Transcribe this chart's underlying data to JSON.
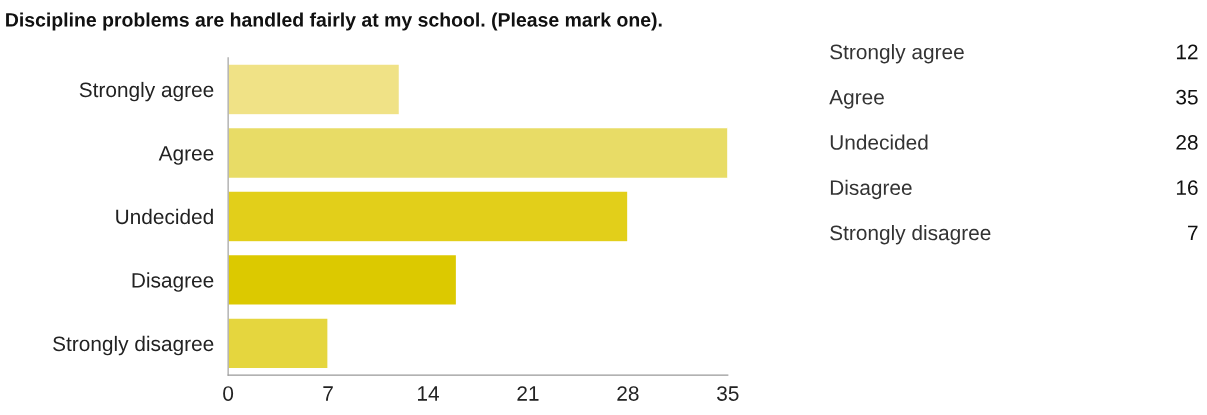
{
  "chart_data": [
    {
      "type": "bar",
      "orientation": "horizontal",
      "title": "Discipline problems are handled fairly at my school. (Please mark one).",
      "categories": [
        "Strongly agree",
        "Agree",
        "Undecided",
        "Disagree",
        "Strongly disagree"
      ],
      "values": [
        12,
        35,
        28,
        16,
        7
      ],
      "colors": [
        "#f0e286",
        "#e8dc66",
        "#e2cf1a",
        "#dcc900",
        "#e5d63e"
      ],
      "xlim": [
        0,
        35
      ],
      "xticks": [
        0,
        7,
        14,
        21,
        28,
        35
      ]
    },
    {
      "type": "other",
      "categories": [
        "Strongly agree",
        "Agree",
        "Undecided",
        "Disagree",
        "Strongly disagree"
      ],
      "values": [
        12,
        35,
        28,
        16,
        7
      ],
      "data_labels": true
    }
  ]
}
